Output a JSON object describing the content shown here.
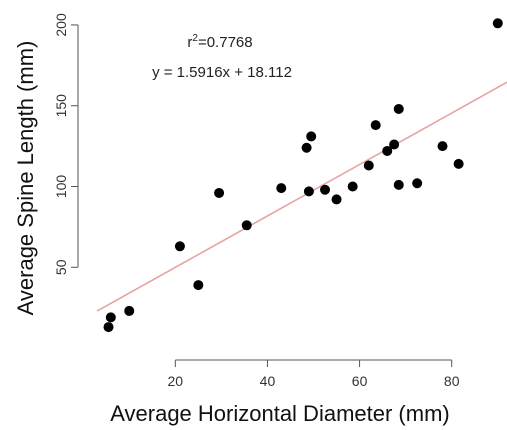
{
  "chart_data": {
    "type": "scatter",
    "xlabel": "Average Horizontal Diameter (mm)",
    "ylabel": "Average Spine Length (mm)",
    "xlim": [
      3,
      92
    ],
    "ylim": [
      5,
      208
    ],
    "xticks": [
      20,
      40,
      60,
      80
    ],
    "yticks": [
      50,
      100,
      150,
      200
    ],
    "grid": false,
    "points": [
      {
        "x": 5.5,
        "y": 13
      },
      {
        "x": 6,
        "y": 19
      },
      {
        "x": 10,
        "y": 23
      },
      {
        "x": 21,
        "y": 63
      },
      {
        "x": 25,
        "y": 39
      },
      {
        "x": 29.5,
        "y": 96
      },
      {
        "x": 35.5,
        "y": 76
      },
      {
        "x": 43,
        "y": 99
      },
      {
        "x": 48.5,
        "y": 124
      },
      {
        "x": 49,
        "y": 97
      },
      {
        "x": 49.5,
        "y": 131
      },
      {
        "x": 52.5,
        "y": 98
      },
      {
        "x": 55,
        "y": 92
      },
      {
        "x": 58.5,
        "y": 100
      },
      {
        "x": 62,
        "y": 113
      },
      {
        "x": 63.5,
        "y": 138
      },
      {
        "x": 66,
        "y": 122
      },
      {
        "x": 67.5,
        "y": 126
      },
      {
        "x": 68.5,
        "y": 148
      },
      {
        "x": 68.5,
        "y": 101
      },
      {
        "x": 72.5,
        "y": 102
      },
      {
        "x": 78,
        "y": 125
      },
      {
        "x": 81.5,
        "y": 114
      },
      {
        "x": 90,
        "y": 201
      }
    ],
    "regression": {
      "slope": 1.5916,
      "intercept": 18.112,
      "r_squared_label": "=0.7768",
      "r_symbol": "r",
      "r_exponent": "2",
      "equation_label": "y = 1.5916x + 18.112"
    },
    "colors": {
      "points": "#000000",
      "fit_line": "#e8a3a3",
      "axes": "#555555"
    }
  }
}
